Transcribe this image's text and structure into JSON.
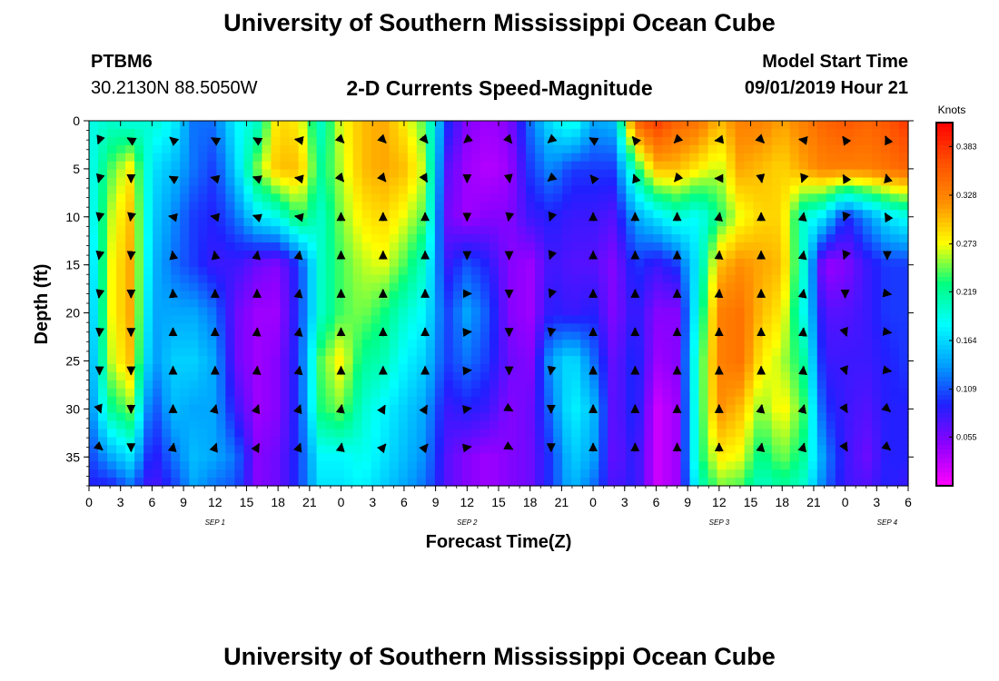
{
  "header": {
    "title": "University of Southern Mississippi Ocean Cube",
    "station": "PTBM6",
    "coords": "30.2130N 88.5050W",
    "subtitle": "2-D Currents Speed-Magnitude",
    "model_start_label": "Model Start Time",
    "model_start_value": "09/01/2019 Hour 21"
  },
  "footer": {
    "title": "University of Southern Mississippi Ocean Cube"
  },
  "chart_data": {
    "type": "heatmap",
    "xlabel": "Forecast Time(Z)",
    "ylabel": "Depth (ft)",
    "x_tick_labels": [
      "0",
      "3",
      "6",
      "9",
      "12",
      "15",
      "18",
      "21",
      "0",
      "3",
      "6",
      "9",
      "12",
      "15",
      "18",
      "21",
      "0",
      "3",
      "6",
      "9",
      "12",
      "15",
      "18",
      "21",
      "0",
      "3",
      "6"
    ],
    "x_range_hours": [
      0,
      78
    ],
    "day_labels": [
      {
        "label": "SEP 1",
        "hour": 12
      },
      {
        "label": "SEP 2",
        "hour": 36
      },
      {
        "label": "SEP 3",
        "hour": 60
      },
      {
        "label": "SEP 4",
        "hour": 76
      }
    ],
    "y_range_ft": [
      0,
      38
    ],
    "y_tick_labels": [
      "0",
      "5",
      "10",
      "15",
      "20",
      "25",
      "30",
      "35"
    ],
    "colorbar": {
      "title": "Knots",
      "tick_labels": [
        "0.383",
        "0.328",
        "0.273",
        "0.219",
        "0.164",
        "0.109",
        "0.055"
      ],
      "range": [
        0,
        0.41
      ],
      "colors": [
        "#ff00ff",
        "#9000ff",
        "#2020ff",
        "#00a0ff",
        "#00ffff",
        "#00ff80",
        "#ffff00",
        "#ff9000",
        "#ff5000",
        "#ff0000"
      ]
    },
    "speed_grid_knots": {
      "depths_ft": [
        0,
        5,
        10,
        15,
        20,
        25,
        30,
        35,
        38
      ],
      "hours": [
        0,
        2,
        4,
        6,
        8,
        10,
        12,
        14,
        16,
        18,
        20,
        22,
        24,
        26,
        28,
        30,
        32,
        34,
        36,
        38,
        40,
        42,
        44,
        46,
        48,
        50,
        52,
        54,
        56,
        58,
        60,
        62,
        64,
        66,
        68,
        70,
        72,
        74,
        76,
        78
      ],
      "rows": [
        [
          0.19,
          0.2,
          0.19,
          0.2,
          0.18,
          0.12,
          0.12,
          0.18,
          0.2,
          0.29,
          0.28,
          0.2,
          0.27,
          0.3,
          0.31,
          0.28,
          0.24,
          0.1,
          0.05,
          0.04,
          0.05,
          0.12,
          0.17,
          0.2,
          0.14,
          0.15,
          0.35,
          0.38,
          0.35,
          0.34,
          0.3,
          0.33,
          0.33,
          0.31,
          0.33,
          0.35,
          0.36,
          0.35,
          0.36,
          0.38
        ],
        [
          0.18,
          0.24,
          0.28,
          0.17,
          0.15,
          0.12,
          0.1,
          0.16,
          0.25,
          0.3,
          0.3,
          0.22,
          0.26,
          0.3,
          0.31,
          0.3,
          0.26,
          0.07,
          0.04,
          0.03,
          0.04,
          0.1,
          0.13,
          0.1,
          0.1,
          0.1,
          0.22,
          0.3,
          0.3,
          0.28,
          0.26,
          0.31,
          0.3,
          0.29,
          0.31,
          0.33,
          0.33,
          0.33,
          0.34,
          0.35
        ],
        [
          0.17,
          0.26,
          0.3,
          0.16,
          0.13,
          0.1,
          0.09,
          0.12,
          0.17,
          0.19,
          0.24,
          0.2,
          0.25,
          0.28,
          0.29,
          0.27,
          0.24,
          0.06,
          0.04,
          0.05,
          0.05,
          0.08,
          0.09,
          0.08,
          0.08,
          0.07,
          0.14,
          0.17,
          0.2,
          0.18,
          0.23,
          0.27,
          0.29,
          0.29,
          0.2,
          0.17,
          0.09,
          0.13,
          0.17,
          0.19
        ],
        [
          0.15,
          0.27,
          0.31,
          0.15,
          0.12,
          0.1,
          0.08,
          0.08,
          0.06,
          0.05,
          0.1,
          0.2,
          0.24,
          0.26,
          0.27,
          0.24,
          0.2,
          0.08,
          0.11,
          0.09,
          0.05,
          0.04,
          0.08,
          0.07,
          0.07,
          0.05,
          0.1,
          0.08,
          0.1,
          0.18,
          0.3,
          0.32,
          0.31,
          0.3,
          0.2,
          0.04,
          0.05,
          0.08,
          0.1,
          0.1
        ],
        [
          0.14,
          0.27,
          0.31,
          0.14,
          0.14,
          0.14,
          0.12,
          0.06,
          0.04,
          0.04,
          0.1,
          0.2,
          0.24,
          0.25,
          0.23,
          0.2,
          0.18,
          0.1,
          0.14,
          0.11,
          0.05,
          0.04,
          0.09,
          0.08,
          0.09,
          0.05,
          0.09,
          0.05,
          0.05,
          0.2,
          0.33,
          0.34,
          0.3,
          0.28,
          0.19,
          0.07,
          0.07,
          0.08,
          0.1,
          0.1
        ],
        [
          0.13,
          0.26,
          0.3,
          0.13,
          0.16,
          0.16,
          0.14,
          0.06,
          0.04,
          0.05,
          0.1,
          0.24,
          0.28,
          0.22,
          0.21,
          0.18,
          0.16,
          0.1,
          0.12,
          0.1,
          0.06,
          0.05,
          0.14,
          0.17,
          0.12,
          0.06,
          0.1,
          0.04,
          0.05,
          0.22,
          0.33,
          0.34,
          0.28,
          0.26,
          0.22,
          0.08,
          0.08,
          0.08,
          0.09,
          0.1
        ],
        [
          0.12,
          0.22,
          0.25,
          0.1,
          0.15,
          0.14,
          0.14,
          0.08,
          0.04,
          0.05,
          0.1,
          0.23,
          0.25,
          0.2,
          0.18,
          0.16,
          0.14,
          0.08,
          0.09,
          0.08,
          0.05,
          0.06,
          0.12,
          0.18,
          0.15,
          0.06,
          0.1,
          0.02,
          0.04,
          0.22,
          0.32,
          0.3,
          0.25,
          0.28,
          0.24,
          0.1,
          0.08,
          0.07,
          0.09,
          0.09
        ],
        [
          0.1,
          0.14,
          0.17,
          0.08,
          0.12,
          0.15,
          0.14,
          0.12,
          0.05,
          0.06,
          0.1,
          0.18,
          0.18,
          0.19,
          0.17,
          0.15,
          0.13,
          0.07,
          0.05,
          0.04,
          0.05,
          0.06,
          0.1,
          0.16,
          0.14,
          0.06,
          0.09,
          0.02,
          0.04,
          0.22,
          0.28,
          0.27,
          0.22,
          0.25,
          0.22,
          0.13,
          0.08,
          0.06,
          0.09,
          0.09
        ],
        [
          0.09,
          0.09,
          0.12,
          0.07,
          0.1,
          0.14,
          0.12,
          0.11,
          0.05,
          0.06,
          0.1,
          0.17,
          0.17,
          0.18,
          0.16,
          0.14,
          0.12,
          0.07,
          0.05,
          0.04,
          0.05,
          0.06,
          0.1,
          0.15,
          0.12,
          0.07,
          0.09,
          0.02,
          0.04,
          0.2,
          0.25,
          0.24,
          0.2,
          0.22,
          0.2,
          0.12,
          0.08,
          0.07,
          0.09,
          0.08
        ]
      ]
    },
    "vectors": {
      "note": "current direction arrows, direction in degrees from north the arrow points toward",
      "columns_hours": [
        1,
        4,
        8,
        12,
        16,
        20,
        24,
        28,
        32,
        36,
        40,
        44,
        48,
        52,
        56,
        60,
        64,
        68,
        72,
        76
      ],
      "rows_depth_ft": [
        2,
        6,
        10,
        14,
        18,
        22,
        26,
        30,
        34
      ],
      "directions_deg": [
        [
          200,
          300,
          310,
          300,
          300,
          280,
          135,
          135,
          140,
          230,
          140,
          230,
          300,
          320,
          225,
          260,
          135,
          280,
          325,
          335
        ],
        [
          195,
          180,
          300,
          285,
          290,
          280,
          140,
          140,
          150,
          180,
          170,
          230,
          320,
          340,
          220,
          270,
          170,
          200,
          330,
          345
        ],
        [
          190,
          190,
          280,
          280,
          290,
          280,
          0,
          0,
          0,
          180,
          190,
          200,
          0,
          0,
          0,
          10,
          0,
          10,
          200,
          330
        ],
        [
          190,
          185,
          350,
          350,
          10,
          10,
          0,
          0,
          0,
          180,
          180,
          200,
          0,
          0,
          0,
          5,
          0,
          10,
          200,
          180
        ],
        [
          190,
          180,
          355,
          0,
          0,
          10,
          0,
          0,
          0,
          90,
          180,
          200,
          0,
          0,
          0,
          5,
          0,
          10,
          180,
          100
        ],
        [
          185,
          180,
          0,
          0,
          5,
          10,
          0,
          0,
          0,
          85,
          180,
          190,
          0,
          0,
          0,
          0,
          0,
          5,
          160,
          100
        ],
        [
          180,
          180,
          0,
          0,
          5,
          10,
          0,
          0,
          0,
          85,
          180,
          190,
          0,
          0,
          0,
          0,
          0,
          5,
          160,
          100
        ],
        [
          160,
          180,
          0,
          15,
          20,
          20,
          10,
          30,
          30,
          80,
          120,
          180,
          0,
          0,
          0,
          0,
          10,
          15,
          150,
          130
        ],
        [
          130,
          180,
          10,
          20,
          30,
          20,
          10,
          40,
          40,
          80,
          120,
          180,
          0,
          0,
          0,
          0,
          10,
          15,
          150,
          130
        ]
      ]
    }
  }
}
